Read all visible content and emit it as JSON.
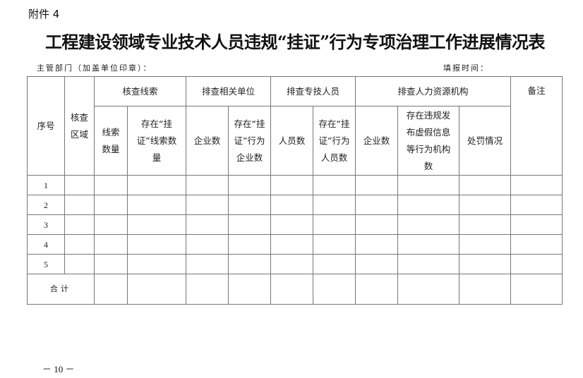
{
  "attachment_label": "附件 4",
  "title": "工程建设领域专业技术人员违规“挂证”行为专项治理工作进展情况表",
  "department_label": "主管部门（加盖单位印章）：",
  "date_label": "填报时间：",
  "table": {
    "headers": {
      "seq": "序号",
      "area": "核查区域",
      "clues": "核查线索",
      "clue_count": "线索数量",
      "clue_guazheng": "存在“挂证”线索数量",
      "units": "排查相关单位",
      "enterprise_count": "企业数",
      "enterprise_guazheng": "存在“挂证”行为企业数",
      "personnel": "排查专技人员",
      "person_count": "人员数",
      "person_guazheng": "存在“挂证”行为人员数",
      "hr": "排查人力资源机构",
      "hr_enterprise_count": "企业数",
      "hr_violation": "存在违规发布虚假信息等行为机构数",
      "penalty": "处罚情况",
      "remarks": "备注"
    },
    "rows": [
      "1",
      "2",
      "3",
      "4",
      "5"
    ],
    "total_label": "合计"
  },
  "page_number": "－ 10 －"
}
